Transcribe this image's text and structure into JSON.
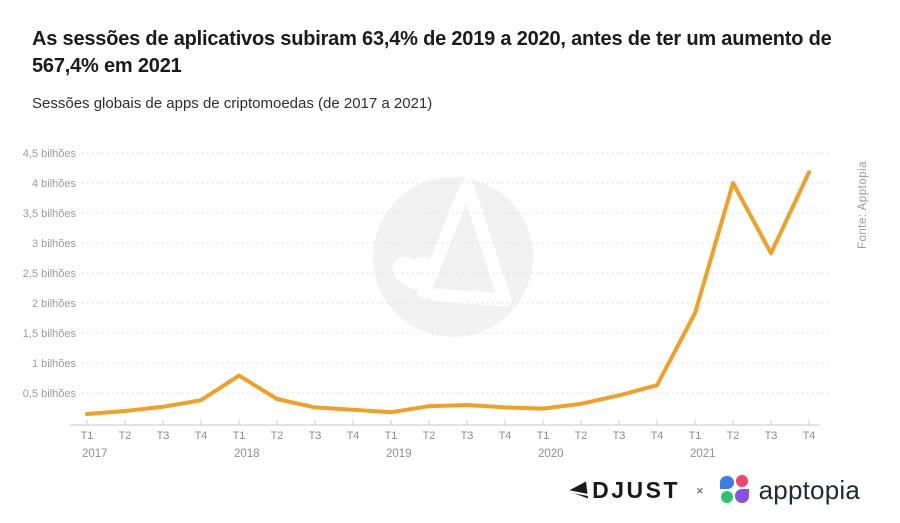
{
  "header": {
    "title": "As sessões de aplicativos subiram 63,4% de 2019 a 2020, antes de ter um aumento de 567,4% em 2021",
    "subtitle": "Sessões globais de apps de criptomoedas (de 2017 a 2021)"
  },
  "source_note": "Fonte: Apptopia",
  "chart_data": {
    "type": "line",
    "title": "Sessões globais de apps de criptomoedas (de 2017 a 2021)",
    "unit": "bilhões",
    "categories": [
      "T1",
      "T2",
      "T3",
      "T4",
      "T1",
      "T2",
      "T3",
      "T4",
      "T1",
      "T2",
      "T3",
      "T4",
      "T1",
      "T2",
      "T3",
      "T4",
      "T1",
      "T2",
      "T3",
      "T4"
    ],
    "year_groups": [
      {
        "label": "2017",
        "start_index": 0
      },
      {
        "label": "2018",
        "start_index": 4
      },
      {
        "label": "2019",
        "start_index": 8
      },
      {
        "label": "2020",
        "start_index": 12
      },
      {
        "label": "2021",
        "start_index": 16
      }
    ],
    "series": [
      {
        "name": "Sessões globais de apps de criptomoedas (bilhões)",
        "color": "#F2A024",
        "values": [
          0.15,
          0.2,
          0.27,
          0.38,
          0.79,
          0.4,
          0.26,
          0.22,
          0.18,
          0.28,
          0.3,
          0.26,
          0.24,
          0.32,
          0.46,
          0.63,
          1.83,
          4.0,
          2.83,
          4.18
        ]
      }
    ],
    "y_ticks": [
      {
        "value": 0.5,
        "label": "0,5 bilhões"
      },
      {
        "value": 1.0,
        "label": "1 bilhões"
      },
      {
        "value": 1.5,
        "label": "1,5 bilhões"
      },
      {
        "value": 2.0,
        "label": "2 bilhões"
      },
      {
        "value": 2.5,
        "label": "2,5 bilhões"
      },
      {
        "value": 3.0,
        "label": "3 bilhões"
      },
      {
        "value": 3.5,
        "label": "3,5 bilhões"
      },
      {
        "value": 4.0,
        "label": "4 bilhões"
      },
      {
        "value": 4.5,
        "label": "4,5 bilhões"
      }
    ],
    "ylim": [
      0,
      4.7
    ],
    "grid": "horizontal-dotted",
    "legend": "none"
  },
  "footer": {
    "adjust": "ADJUST",
    "separator": "×",
    "apptopia": "apptopia"
  },
  "colors": {
    "line": "#F2A024",
    "title_text": "#1b1b1b",
    "axis_text": "#8f8f8f",
    "gridline": "#d8d8d8",
    "axis_line": "#c9c9c9",
    "watermark_circle": "#f2f2f2",
    "apptopia_blue": "#3c7ce4",
    "apptopia_pink": "#f1436e",
    "apptopia_green": "#2dc26f",
    "apptopia_purple": "#8552e6"
  }
}
